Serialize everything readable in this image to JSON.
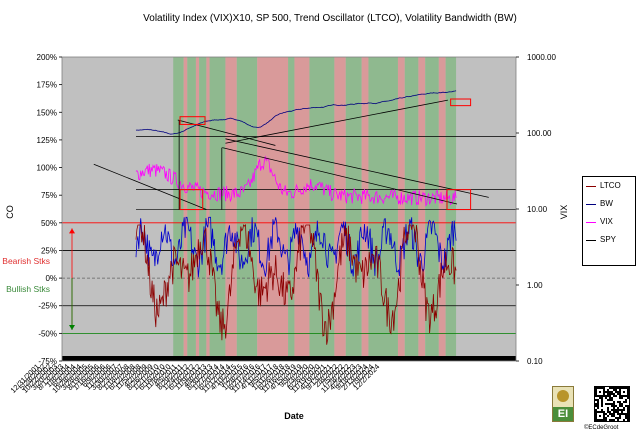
{
  "chart_data": {
    "type": "line",
    "title": "Volatility Index (VIX)X10, SP 500, Trend Oscillator (LTCO), Volatility Bandwidth (BW)",
    "xlabel": "Date",
    "ylabel_left": "CO",
    "ylabel_right": "VIX",
    "left_axis": {
      "ticks": [
        "200%",
        "175%",
        "150%",
        "125%",
        "100%",
        "75%",
        "50%",
        "25%",
        "0%",
        "-25%",
        "-50%",
        "-75%"
      ],
      "tick_values": [
        200,
        175,
        150,
        125,
        100,
        75,
        50,
        25,
        0,
        -25,
        -50,
        -75
      ],
      "ylim": [
        -75,
        200
      ]
    },
    "right_axis": {
      "ticks": [
        "1000.00",
        "100.00",
        "10.00",
        "1.00",
        "0.10"
      ],
      "tick_values": [
        1000,
        100,
        10,
        1,
        0.1
      ],
      "scale": "log",
      "ylim": [
        0.1,
        1000
      ]
    },
    "x_tick_labels": [
      "12/31/2001",
      "5/28/2002",
      "10/22/2002",
      "3/20/2003",
      "8/13/2003",
      "1/8/2004",
      "6/3/2004",
      "10/28/2004",
      "3/28/2005",
      "8/19/2005",
      "1/16/2006",
      "6/9/2006",
      "11/2/2006",
      "3/30/2007",
      "8/23/2007",
      "1/18/2008",
      "6/12/2008",
      "11/5/2008",
      "4/2/2009",
      "8/26/2009",
      "1/21/2010",
      "6/16/2010",
      "11/8/2010",
      "4/5/2011",
      "8/29/2011",
      "1/24/2012",
      "6/18/2012",
      "11/9/2012",
      "4/8/2013",
      "8/30/2013",
      "1/27/2014",
      "6/20/2014",
      "11/12/2014",
      "4/10/2015",
      "9/2/2015",
      "1/28/2016",
      "6/21/2016",
      "11/14/2016",
      "4/11/2017",
      "9/5/2017",
      "1/31/2018",
      "6/26/2018",
      "11/16/2018",
      "4/15/2019",
      "9/9/2019",
      "2/3/2020",
      "6/26/2020",
      "11/19/2020",
      "4/19/2021",
      "9/13/2021",
      "2/8/2022",
      "7/5/2022",
      "11/28/2022",
      "4/24/2023",
      "9/18/2023",
      "2/13/2024",
      "7/9/2024",
      "12/2/2024"
    ],
    "legend": {
      "placement": "right",
      "entries": [
        {
          "name": "LTCO",
          "color": "#8b0000"
        },
        {
          "name": "BW",
          "color": "#000080"
        },
        {
          "name": "VIX",
          "color": "#ff00ff"
        },
        {
          "name": "SPY",
          "color": "#000000"
        }
      ]
    },
    "side_labels": {
      "bearish": "Bearish Stks",
      "bullish": "Bullish Stks"
    },
    "colors": {
      "plot_background": "#c0c0c0",
      "green_regime": "#8fb98f",
      "red_regime": "#d99a9a",
      "bearish_label": "#e03030",
      "bullish_label": "#3a8a3a",
      "line_50": "#ff0000",
      "line_minus50": "#008000",
      "zero_line": "#606060",
      "ltco": "#8b0000",
      "bw": "#0000cc",
      "vix": "#ff00ff",
      "spy": "#00007f",
      "trendline": "#000000",
      "highlight_box": "#ff0000"
    },
    "reference_lines": [
      50,
      25,
      0,
      -25,
      -50
    ],
    "regime_bands": [
      {
        "from": 0.245,
        "to": 0.268,
        "state": "bullish"
      },
      {
        "from": 0.268,
        "to": 0.276,
        "state": "bearish"
      },
      {
        "from": 0.276,
        "to": 0.295,
        "state": "bullish"
      },
      {
        "from": 0.295,
        "to": 0.302,
        "state": "bearish"
      },
      {
        "from": 0.302,
        "to": 0.318,
        "state": "bullish"
      },
      {
        "from": 0.318,
        "to": 0.325,
        "state": "bearish"
      },
      {
        "from": 0.325,
        "to": 0.36,
        "state": "bullish"
      },
      {
        "from": 0.36,
        "to": 0.385,
        "state": "bearish"
      },
      {
        "from": 0.385,
        "to": 0.43,
        "state": "bullish"
      },
      {
        "from": 0.43,
        "to": 0.498,
        "state": "bearish"
      },
      {
        "from": 0.498,
        "to": 0.512,
        "state": "bullish"
      },
      {
        "from": 0.512,
        "to": 0.545,
        "state": "bearish"
      },
      {
        "from": 0.545,
        "to": 0.6,
        "state": "bullish"
      },
      {
        "from": 0.6,
        "to": 0.625,
        "state": "bearish"
      },
      {
        "from": 0.625,
        "to": 0.66,
        "state": "bullish"
      },
      {
        "from": 0.66,
        "to": 0.675,
        "state": "bearish"
      },
      {
        "from": 0.675,
        "to": 0.74,
        "state": "bullish"
      },
      {
        "from": 0.74,
        "to": 0.755,
        "state": "bearish"
      },
      {
        "from": 0.755,
        "to": 0.785,
        "state": "bullish"
      },
      {
        "from": 0.785,
        "to": 0.8,
        "state": "bearish"
      },
      {
        "from": 0.8,
        "to": 0.83,
        "state": "bullish"
      },
      {
        "from": 0.83,
        "to": 0.845,
        "state": "bearish"
      },
      {
        "from": 0.845,
        "to": 0.868,
        "state": "bullish"
      }
    ]
  },
  "credit": "©ECdeGroot",
  "logo_text": "EI"
}
